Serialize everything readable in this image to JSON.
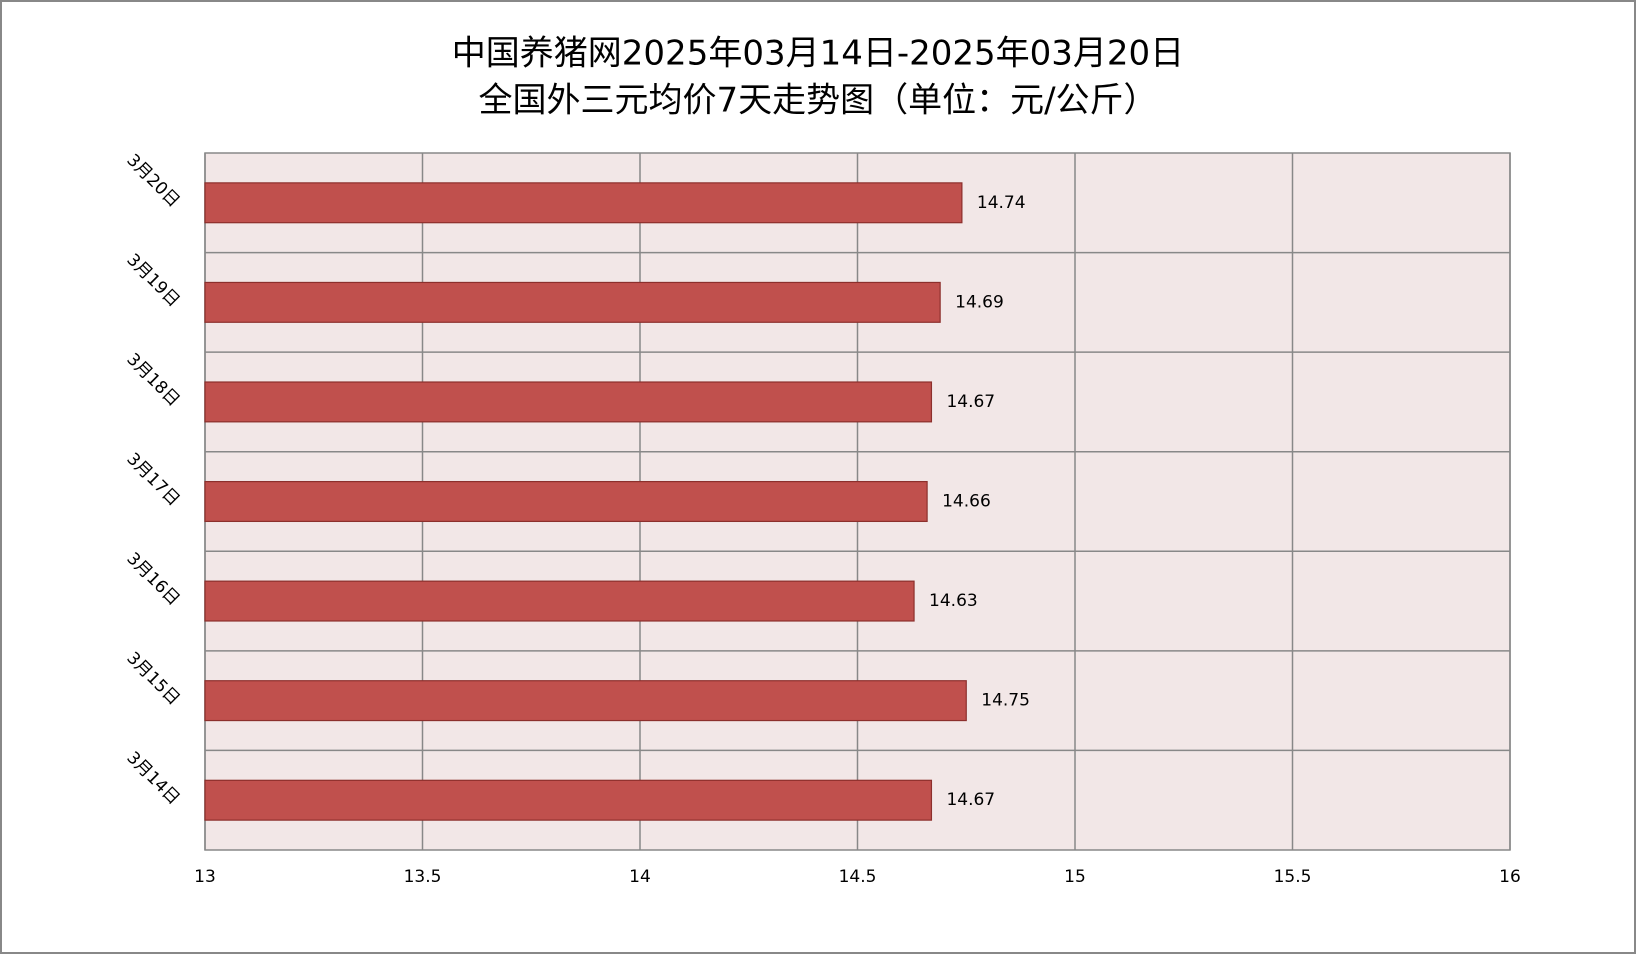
{
  "chart_data": {
    "type": "barh",
    "title": "中国养猪网2025年03月14日-2025年03月20日",
    "subtitle": "全国外三元均价7天走势图（单位：元/公斤）",
    "categories": [
      "3月14日",
      "3月15日",
      "3月16日",
      "3月17日",
      "3月18日",
      "3月19日",
      "3月20日"
    ],
    "values": [
      14.67,
      14.75,
      14.63,
      14.66,
      14.67,
      14.69,
      14.74
    ],
    "color": "#c0504d",
    "xlim": [
      13,
      16
    ],
    "xticks": [
      13,
      13.5,
      14,
      14.5,
      15,
      15.5,
      16
    ],
    "grid": true
  }
}
